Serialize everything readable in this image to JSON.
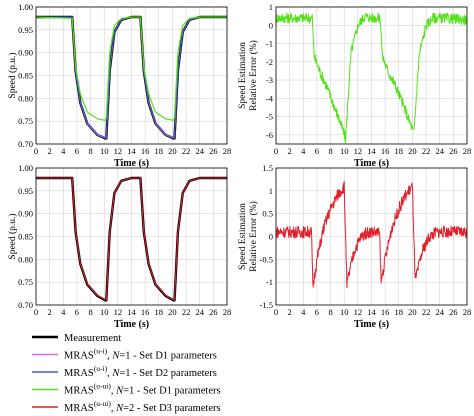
{
  "chart_data": [
    {
      "id": "speed_top",
      "type": "line",
      "xlabel": "Time (s)",
      "ylabel": "Speed (p.u.)",
      "xlim": [
        0,
        28
      ],
      "ylim": [
        0.7,
        1.0
      ],
      "xticks": [
        "0",
        "2",
        "4",
        "6",
        "8",
        "10",
        "12",
        "14",
        "16",
        "18",
        "20",
        "22",
        "24",
        "26",
        "28"
      ],
      "yticks": [
        "0.70",
        "0.75",
        "0.80",
        "0.85",
        "0.90",
        "0.95",
        "1.00"
      ],
      "grid": true,
      "series": [
        {
          "name": "Measurement",
          "color": "#000000",
          "width": 2.4,
          "x": [
            0,
            5.3,
            5.8,
            6.5,
            7.5,
            9,
            10.2,
            10.3,
            10.8,
            11.5,
            12.5,
            14,
            15.2,
            15.3,
            15.8,
            16.5,
            17.5,
            19,
            20.2,
            20.3,
            20.8,
            21.5,
            22.5,
            24,
            28
          ],
          "y": [
            0.978,
            0.978,
            0.86,
            0.79,
            0.745,
            0.72,
            0.712,
            0.712,
            0.86,
            0.945,
            0.972,
            0.978,
            0.978,
            0.978,
            0.86,
            0.79,
            0.745,
            0.72,
            0.712,
            0.712,
            0.86,
            0.945,
            0.972,
            0.978,
            0.978
          ]
        },
        {
          "name": "MRAS(u-i), N=1 - Set D1 parameters",
          "color": "#d86ad8",
          "width": 1,
          "x": [
            0,
            5.3,
            5.8,
            6.5,
            7.5,
            9,
            10.2,
            10.3,
            10.8,
            11.5,
            12.5,
            14,
            15.2,
            15.3,
            15.8,
            16.5,
            17.5,
            19,
            20.2,
            20.3,
            20.8,
            21.5,
            22.5,
            24,
            28
          ],
          "y": [
            0.978,
            0.978,
            0.86,
            0.79,
            0.745,
            0.72,
            0.713,
            0.713,
            0.86,
            0.945,
            0.972,
            0.978,
            0.978,
            0.978,
            0.86,
            0.79,
            0.745,
            0.72,
            0.713,
            0.713,
            0.86,
            0.945,
            0.972,
            0.978,
            0.978
          ]
        },
        {
          "name": "MRAS(u-i), N=1 - Set D2 parameters",
          "color": "#3a5fd8",
          "width": 1,
          "x": [
            0,
            5.3,
            5.8,
            6.5,
            7.5,
            9,
            10.2,
            10.3,
            10.8,
            11.5,
            12.5,
            14,
            15.2,
            15.3,
            15.8,
            16.5,
            17.5,
            19,
            20.2,
            20.3,
            20.8,
            21.5,
            22.5,
            24,
            28
          ],
          "y": [
            0.978,
            0.978,
            0.862,
            0.792,
            0.747,
            0.722,
            0.714,
            0.714,
            0.862,
            0.946,
            0.972,
            0.978,
            0.978,
            0.978,
            0.862,
            0.792,
            0.747,
            0.722,
            0.714,
            0.714,
            0.862,
            0.946,
            0.972,
            0.978,
            0.978
          ]
        },
        {
          "name": "MRAS(u-ui), N=1 - Set D1 parameters",
          "color": "#55e01a",
          "width": 1.2,
          "x": [
            0,
            5.3,
            5.8,
            6.5,
            7.5,
            9,
            10.2,
            10.3,
            10.8,
            11.5,
            12.5,
            14,
            15.2,
            15.3,
            15.8,
            16.5,
            17.5,
            19,
            20.2,
            20.3,
            20.8,
            21.5,
            22.5,
            24,
            28
          ],
          "y": [
            0.978,
            0.975,
            0.87,
            0.81,
            0.77,
            0.755,
            0.752,
            0.76,
            0.9,
            0.96,
            0.975,
            0.978,
            0.978,
            0.975,
            0.87,
            0.81,
            0.77,
            0.755,
            0.752,
            0.76,
            0.9,
            0.96,
            0.975,
            0.978,
            0.978
          ]
        }
      ]
    },
    {
      "id": "error_top",
      "type": "line",
      "xlabel": "Time (s)",
      "ylabel": "Speed Estimation Relative Error (%)",
      "ylabel_lines": [
        "Speed Estimation",
        "Relative Error (%)"
      ],
      "xlim": [
        0,
        28
      ],
      "ylim": [
        -6.5,
        1
      ],
      "xticks": [
        "0",
        "2",
        "4",
        "6",
        "8",
        "10",
        "12",
        "14",
        "16",
        "18",
        "20",
        "22",
        "24",
        "26",
        "28"
      ],
      "yticks": [
        "1",
        "0",
        "-1",
        "-2",
        "-3",
        "-4",
        "-5",
        "-6"
      ],
      "yticks_values": [
        1,
        0,
        -1,
        -2,
        -3,
        -4,
        -5,
        -6
      ],
      "grid": true,
      "series": [
        {
          "name": "MRAS(u-ui), N=1 - Set D1 parameters",
          "color": "#55e01a",
          "width": 1,
          "x": [
            0,
            5.3,
            5.6,
            6.5,
            7.5,
            8.5,
            9.5,
            10.2,
            10.3,
            11,
            12,
            13,
            14,
            15.2,
            15.3,
            15.6,
            16.5,
            17.5,
            18.5,
            19.5,
            20.2,
            20.3,
            21,
            22,
            23,
            24,
            28
          ],
          "y": [
            0.4,
            0.4,
            -1.7,
            -2.6,
            -3.4,
            -4.4,
            -5.4,
            -6.2,
            -5.6,
            -1.5,
            0,
            0.5,
            0.4,
            0.4,
            0.3,
            -1.7,
            -2.6,
            -3.3,
            -4.2,
            -5.2,
            -5.9,
            -5.4,
            -1.6,
            0,
            0.4,
            0.4,
            0.3
          ],
          "noise": 0.28
        }
      ]
    },
    {
      "id": "speed_bottom",
      "type": "line",
      "xlabel": "Time (s)",
      "ylabel": "Speed (p.u.)",
      "xlim": [
        0,
        28
      ],
      "ylim": [
        0.7,
        1.0
      ],
      "xticks": [
        "0",
        "2",
        "4",
        "6",
        "8",
        "10",
        "12",
        "14",
        "16",
        "18",
        "20",
        "22",
        "24",
        "26",
        "28"
      ],
      "yticks": [
        "0.70",
        "0.75",
        "0.80",
        "0.85",
        "0.90",
        "0.95",
        "1.00"
      ],
      "grid": true,
      "series": [
        {
          "name": "Measurement",
          "color": "#000000",
          "width": 2.4,
          "x": [
            0,
            5.3,
            5.8,
            6.5,
            7.5,
            9,
            10.2,
            10.3,
            10.8,
            11.5,
            12.5,
            14,
            15.2,
            15.3,
            15.8,
            16.5,
            17.5,
            19,
            20.2,
            20.3,
            20.8,
            21.5,
            22.5,
            24,
            28
          ],
          "y": [
            0.978,
            0.978,
            0.86,
            0.79,
            0.745,
            0.72,
            0.71,
            0.71,
            0.86,
            0.945,
            0.972,
            0.978,
            0.978,
            0.978,
            0.86,
            0.79,
            0.745,
            0.72,
            0.71,
            0.71,
            0.86,
            0.945,
            0.972,
            0.978,
            0.978
          ]
        },
        {
          "name": "MRAS(u-ui), N=2 - Set D3 parameters",
          "color": "#e0202a",
          "width": 1,
          "x": [
            0,
            5.3,
            5.8,
            6.5,
            7.5,
            9,
            10.2,
            10.3,
            10.8,
            11.5,
            12.5,
            14,
            15.2,
            15.3,
            15.8,
            16.5,
            17.5,
            19,
            20.2,
            20.3,
            20.8,
            21.5,
            22.5,
            24,
            28
          ],
          "y": [
            0.978,
            0.978,
            0.861,
            0.791,
            0.746,
            0.721,
            0.711,
            0.711,
            0.861,
            0.945,
            0.972,
            0.978,
            0.978,
            0.978,
            0.861,
            0.791,
            0.746,
            0.721,
            0.711,
            0.711,
            0.861,
            0.945,
            0.972,
            0.978,
            0.978
          ]
        }
      ]
    },
    {
      "id": "error_bottom",
      "type": "line",
      "xlabel": "Time (s)",
      "ylabel": "Speed Estimation Relative Error (%)",
      "ylabel_lines": [
        "Speed Estimation",
        "Relative Error (%)"
      ],
      "xlim": [
        0,
        28
      ],
      "ylim": [
        -1.5,
        1.5
      ],
      "xticks": [
        "0",
        "2",
        "4",
        "6",
        "8",
        "10",
        "12",
        "14",
        "16",
        "18",
        "20",
        "22",
        "24",
        "26",
        "28"
      ],
      "yticks": [
        "1.5",
        "1",
        "0.5",
        "0",
        "-0.5",
        "-1",
        "-1.5"
      ],
      "yticks_values": [
        1.5,
        1,
        0.5,
        0,
        -0.5,
        -1,
        -1.5
      ],
      "grid": true,
      "series": [
        {
          "name": "MRAS(u-ui), N=2 - Set D3 parameters",
          "color": "#e0202a",
          "width": 1,
          "x": [
            0,
            5.2,
            5.4,
            6,
            7,
            8,
            9,
            10,
            10.4,
            10.6,
            11.5,
            12.5,
            13.5,
            14.5,
            15.2,
            15.4,
            16,
            17,
            18,
            19,
            20,
            20.4,
            20.6,
            21.5,
            22.5,
            23.5,
            25,
            28
          ],
          "y": [
            0.1,
            0.1,
            -1.1,
            -0.5,
            0.2,
            0.6,
            0.9,
            1.1,
            -1.1,
            -0.9,
            -0.3,
            0,
            0.1,
            0.1,
            0.05,
            -1.0,
            -0.5,
            0.2,
            0.6,
            0.9,
            1.1,
            -1.0,
            -0.85,
            -0.3,
            0,
            0.1,
            0.1,
            0.1
          ],
          "noise": 0.13
        }
      ]
    }
  ],
  "legend": {
    "items": [
      {
        "color": "#000000",
        "base": "Measurement",
        "sup": "",
        "n": "",
        "suffix": ""
      },
      {
        "color": "#d86ad8",
        "base": "MRAS",
        "sup": "(u-i)",
        "n": "=1",
        "suffix": " - Set D1 parameters"
      },
      {
        "color": "#3a5fd8",
        "base": "MRAS",
        "sup": "(u-i)",
        "n": "=1",
        "suffix": " - Set D2 parameters"
      },
      {
        "color": "#55e01a",
        "base": "MRAS",
        "sup": "(u-ui)",
        "n": "=1",
        "suffix": " - Set D1 parameters"
      },
      {
        "color": "#e0202a",
        "base": "MRAS",
        "sup": "(u-ui)",
        "n": "=2",
        "suffix": " - Set D3 parameters"
      }
    ]
  }
}
